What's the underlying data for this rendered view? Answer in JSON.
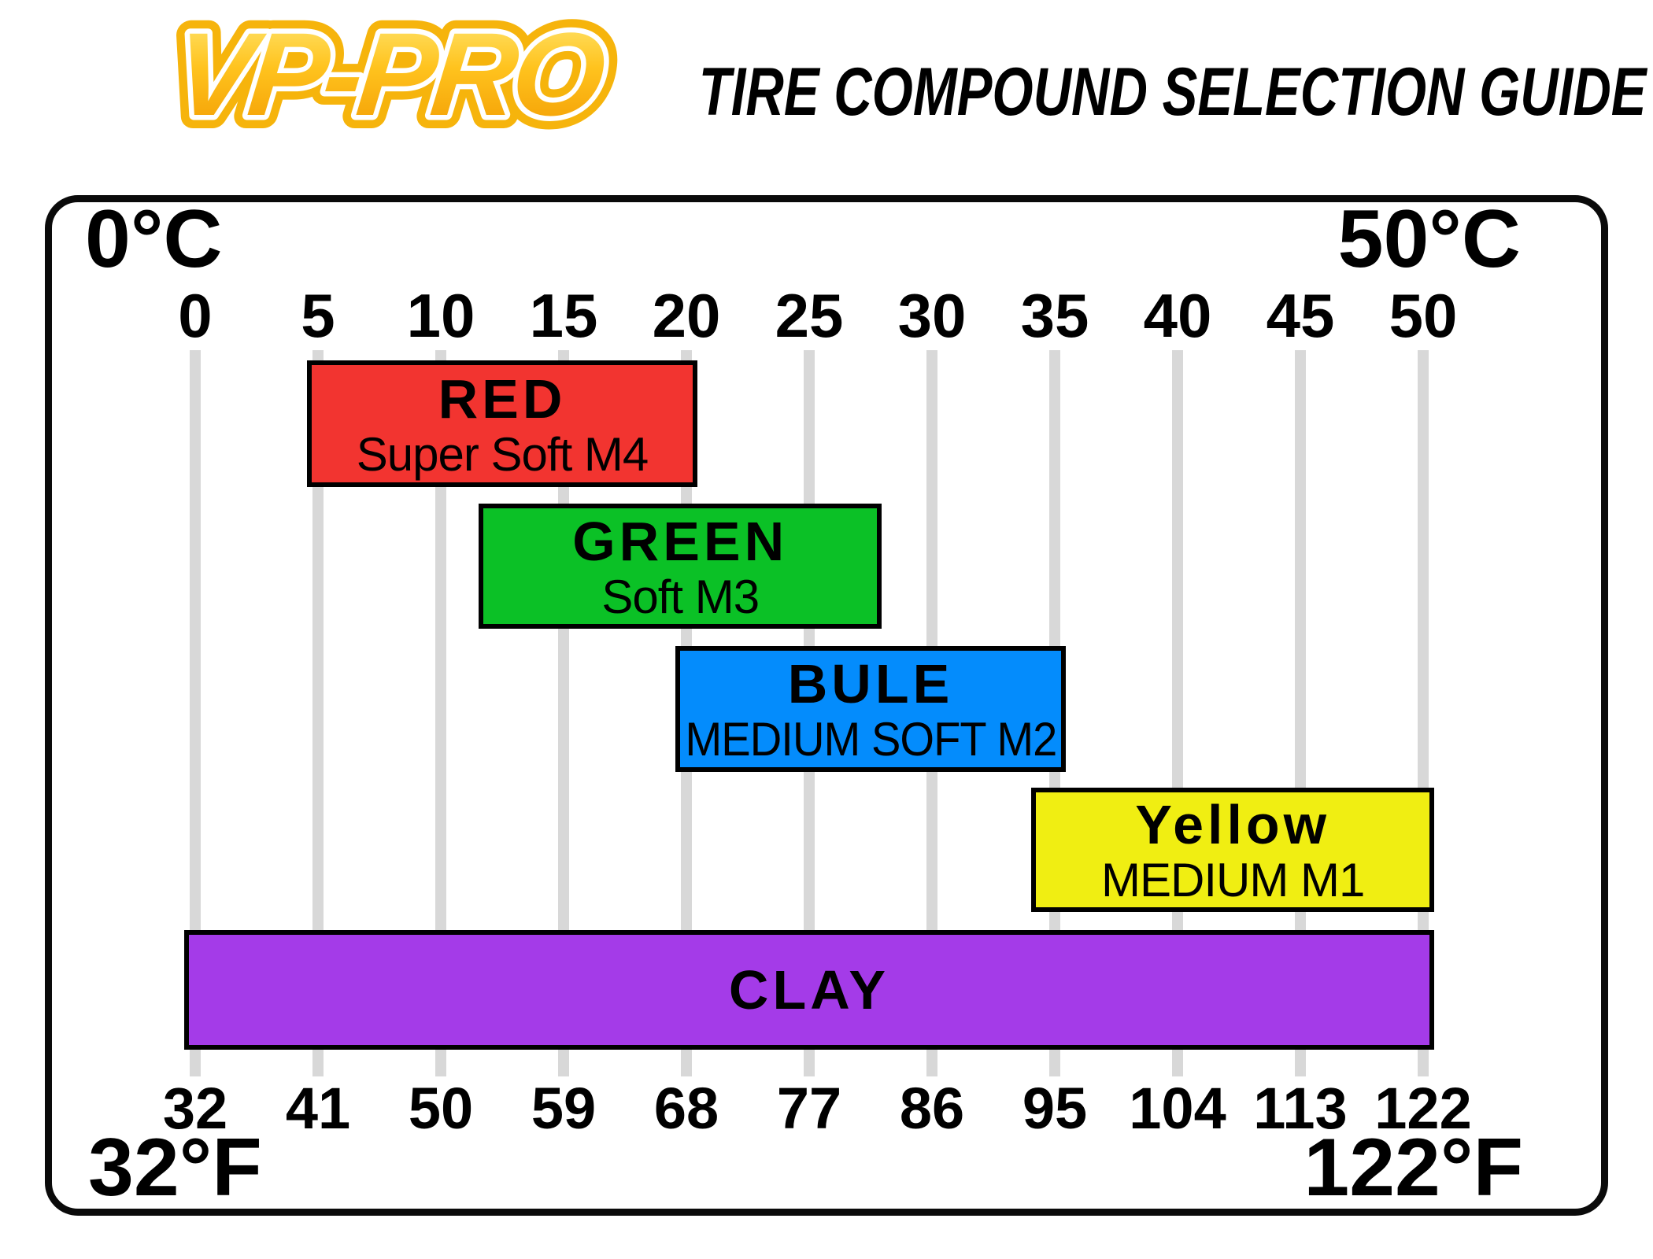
{
  "header": {
    "logo_text": "VP-PRO",
    "title": "TIRE COMPOUND SELECTION GUIDE",
    "logo_colors": {
      "outline": "#f6b40c",
      "inner_stroke": "#ffffff",
      "fill_top": "#ffe978",
      "fill_mid": "#ffc31e",
      "fill_bottom": "#f29a00"
    }
  },
  "chart_data": {
    "type": "bar",
    "orientation": "horizontal-range",
    "title": "TIRE COMPOUND SELECTION GUIDE",
    "xlim": [
      0,
      50
    ],
    "grid": true,
    "axis_top": {
      "unit": "°C",
      "min_label": "0°C",
      "max_label": "50°C",
      "ticks": [
        0,
        5,
        10,
        15,
        20,
        25,
        30,
        35,
        40,
        45,
        50
      ]
    },
    "axis_bottom": {
      "unit": "°F",
      "min_label": "32°F",
      "max_label": "122°F",
      "ticks": [
        32,
        41,
        50,
        59,
        68,
        77,
        86,
        95,
        104,
        113,
        122
      ]
    },
    "series": [
      {
        "label": "RED",
        "sublabel": "Super Soft M4",
        "range_c": [
          5,
          20
        ],
        "color": "#f23430"
      },
      {
        "label": "GREEN",
        "sublabel": "Soft M3",
        "range_c": [
          12,
          27.5
        ],
        "color": "#0bc126"
      },
      {
        "label": "BULE",
        "sublabel": "MEDIUM SOFT M2",
        "range_c": [
          20,
          35
        ],
        "color": "#048cfc"
      },
      {
        "label": "Yellow",
        "sublabel": "MEDIUM M1",
        "range_c": [
          34.5,
          50
        ],
        "color": "#f0ee12"
      },
      {
        "label": "CLAY",
        "sublabel": "",
        "range_c": [
          0,
          50
        ],
        "color": "#a43be8"
      }
    ],
    "grid_color": "#d8d8d8",
    "bar_border_color": "#000000"
  }
}
